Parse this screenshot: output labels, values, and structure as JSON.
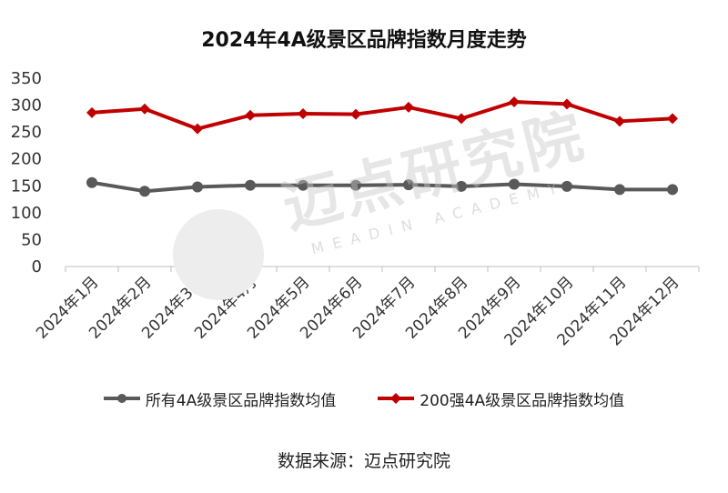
{
  "chart_data": {
    "type": "line",
    "title": "2024年4A级景区品牌指数月度走势",
    "categories": [
      "2024年1月",
      "2024年2月",
      "2024年3月",
      "2024年4月",
      "2024年5月",
      "2024年6月",
      "2024年7月",
      "2024年8月",
      "2024年9月",
      "2024年10月",
      "2024年11月",
      "2024年12月"
    ],
    "series": [
      {
        "name": "所有4A级景区品牌指数均值",
        "color": "#595959",
        "values": [
          156,
          140,
          148,
          151,
          151,
          151,
          152,
          149,
          153,
          149,
          143,
          143
        ]
      },
      {
        "name": "200强4A级景区品牌指数均值",
        "color": "#C00000",
        "values": [
          286,
          293,
          256,
          281,
          284,
          283,
          296,
          275,
          306,
          302,
          270,
          275
        ]
      }
    ],
    "ylim": [
      0,
      350
    ],
    "yticks": [
      0,
      50,
      100,
      150,
      200,
      250,
      300,
      350
    ],
    "xlabel": "",
    "ylabel": "",
    "grid": false,
    "legend_position": "bottom"
  },
  "source": "数据来源：迈点研究院",
  "watermark": {
    "text_cn": "迈点研究院",
    "text_en": "MEADIN ACADEMY"
  }
}
